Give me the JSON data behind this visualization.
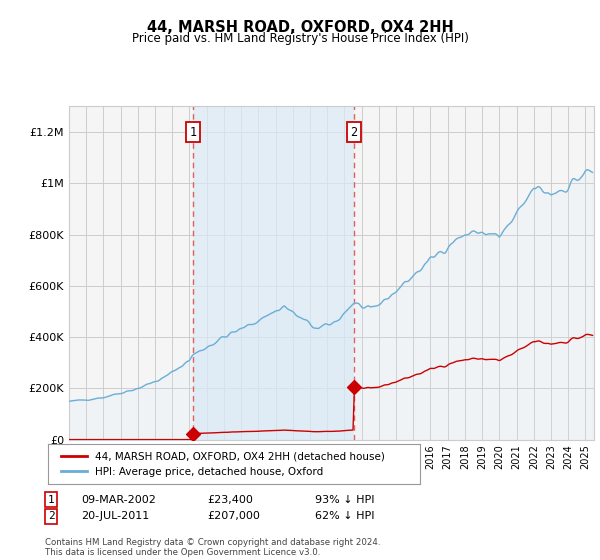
{
  "title": "44, MARSH ROAD, OXFORD, OX4 2HH",
  "subtitle": "Price paid vs. HM Land Registry's House Price Index (HPI)",
  "footer": "Contains HM Land Registry data © Crown copyright and database right 2024.\nThis data is licensed under the Open Government Licence v3.0.",
  "legend_label_red": "44, MARSH ROAD, OXFORD, OX4 2HH (detached house)",
  "legend_label_blue": "HPI: Average price, detached house, Oxford",
  "annotation1_date": "09-MAR-2002",
  "annotation1_price": "£23,400",
  "annotation1_hpi": "93% ↓ HPI",
  "annotation1_year": 2002.19,
  "annotation1_value": 23400,
  "annotation2_date": "20-JUL-2011",
  "annotation2_price": "£207,000",
  "annotation2_hpi": "62% ↓ HPI",
  "annotation2_year": 2011.55,
  "annotation2_value": 207000,
  "ylim": [
    0,
    1300000
  ],
  "xlim_start": 1995.0,
  "xlim_end": 2025.5,
  "hpi_color": "#6aaed6",
  "hpi_fill_color": "#daeaf5",
  "sale_color": "#cc0000",
  "vline_color": "#e06060",
  "background_color": "#ffffff",
  "plot_bg_color": "#f5f5f5",
  "grid_color": "#cccccc"
}
